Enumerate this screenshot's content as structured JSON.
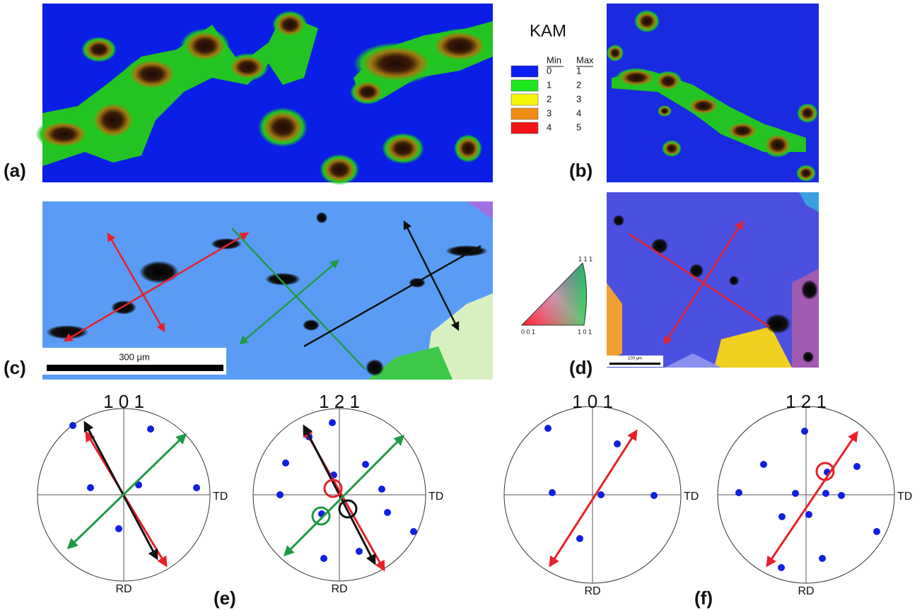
{
  "panel_labels": [
    "(a)",
    "(b)",
    "(c)",
    "(d)",
    "(e)",
    "(f)"
  ],
  "kam_legend": {
    "title": "KAM",
    "min_header": "Min",
    "max_header": "Max",
    "rows": [
      {
        "min": 0,
        "max": 1,
        "color": "#0a1ef0"
      },
      {
        "min": 1,
        "max": 2,
        "color": "#1ee61e"
      },
      {
        "min": 2,
        "max": 3,
        "color": "#f5f50a"
      },
      {
        "min": 3,
        "max": 4,
        "color": "#f08c14"
      },
      {
        "min": 4,
        "max": 5,
        "color": "#f01414"
      }
    ]
  },
  "scale_bars": [
    "300 μm",
    "100 μm"
  ],
  "ipf_triangle": {
    "top": "1 1 1",
    "left": "0 0 1",
    "right": "1 0 1"
  },
  "pole_figures": [
    {
      "title": "1 0 1",
      "right": "TD",
      "bottom": "RD"
    },
    {
      "title": "1 2 1",
      "right": "TD",
      "bottom": "RD"
    },
    {
      "title": "1 0 1",
      "right": "TD",
      "bottom": "RD"
    },
    {
      "title": "1 2 1",
      "right": "TD",
      "bottom": "RD"
    }
  ]
}
